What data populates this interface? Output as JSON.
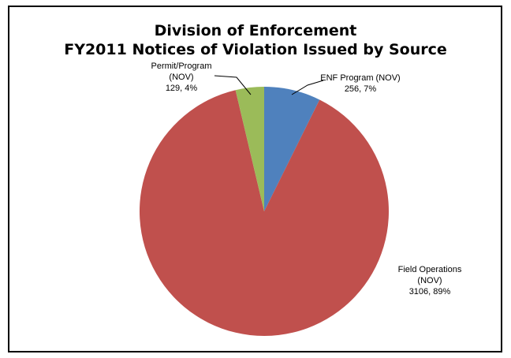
{
  "chart_data": {
    "type": "pie",
    "title": "Division of Enforcement",
    "subtitle": "FY2011 Notices of Violation Issued by Source",
    "slices": [
      {
        "label_lines": [
          "ENF Program (NOV)"
        ],
        "value": 256,
        "percent": "7%",
        "color": "#4f81bd"
      },
      {
        "label_lines": [
          "Field Operations",
          "(NOV)"
        ],
        "value": 3106,
        "percent": "89%",
        "color": "#c0504d"
      },
      {
        "label_lines": [
          "Permit/Program",
          "(NOV)"
        ],
        "value": 129,
        "percent": "4%",
        "color": "#9bbb59"
      }
    ],
    "start": "12 o'clock",
    "direction": "clockwise",
    "legend": "none"
  }
}
